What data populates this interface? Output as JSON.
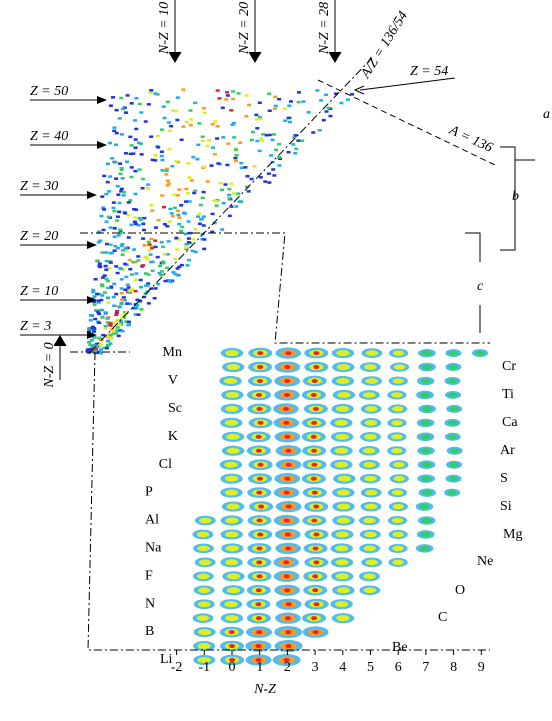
{
  "top_panel": {
    "arrows_top": [
      "N-Z = 10",
      "N-Z = 20",
      "N-Z = 28"
    ],
    "z_labels": [
      "Z = 50",
      "Z = 40",
      "Z = 30",
      "Z = 20",
      "Z = 10",
      "Z = 3"
    ],
    "z54": "Z = 54",
    "a136": "A = 136",
    "az": "A/Z = 136/54",
    "nz0": "N-Z = 0",
    "brackets": [
      "a",
      "b",
      "c"
    ]
  },
  "zoom_panel": {
    "left_elements": [
      "Mn",
      "V",
      "Sc",
      "K",
      "Cl",
      "P",
      "Al",
      "Na",
      "F",
      "N",
      "B",
      "Li"
    ],
    "right_elements": [
      "Cr",
      "Ti",
      "Ca",
      "Ar",
      "S",
      "Si",
      "Mg",
      "Ne",
      "O",
      "C",
      "Be"
    ],
    "xticks": [
      -2,
      -1,
      0,
      1,
      2,
      3,
      4,
      5,
      6,
      7,
      8,
      9
    ],
    "xlabel": "N-Z"
  }
}
